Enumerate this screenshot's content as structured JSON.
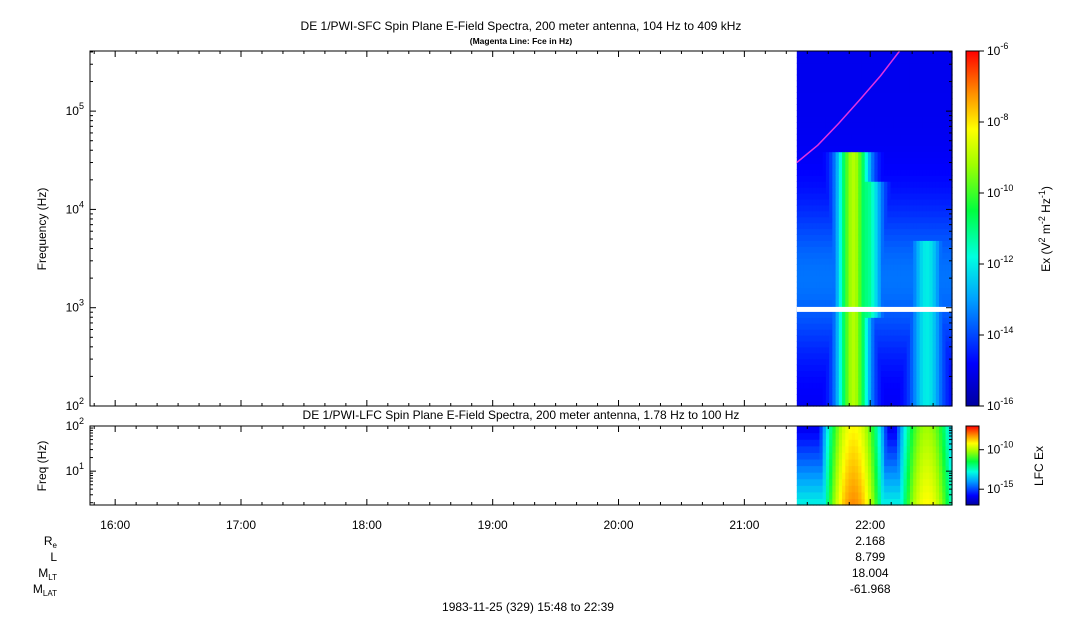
{
  "chart_data": [
    {
      "type": "heatmap",
      "title": "DE 1/PWI-SFC  Spin Plane E-Field Spectra, 200 meter antenna, 104 Hz to 409 kHz",
      "subtitle": "(Magenta Line: Fce in Hz)",
      "ylabel": "Frequency (Hz)",
      "y_scale": "log",
      "ylim": [
        100,
        409000
      ],
      "y_ticks": [
        {
          "value": 100,
          "base": "10",
          "exp": "2"
        },
        {
          "value": 1000,
          "base": "10",
          "exp": "3"
        },
        {
          "value": 10000,
          "base": "10",
          "exp": "4"
        },
        {
          "value": 100000,
          "base": "10",
          "exp": "5"
        }
      ],
      "colorbar": {
        "label": "Ex (V² m⁻² Hz⁻¹)",
        "label_parts": {
          "main": "Ex (V",
          "sup1": "2",
          "mid": " m",
          "sup2": "-2",
          "mid2": " Hz",
          "sup3": "-1",
          "end": ")"
        },
        "scale": "log",
        "range": [
          1e-16,
          1e-06
        ],
        "ticks": [
          {
            "value": 1e-06,
            "base": "10",
            "exp": "-6"
          },
          {
            "value": 1e-08,
            "base": "10",
            "exp": "-8"
          },
          {
            "value": 1e-10,
            "base": "10",
            "exp": "-10"
          },
          {
            "value": 1e-12,
            "base": "10",
            "exp": "-12"
          },
          {
            "value": 1e-14,
            "base": "10",
            "exp": "-14"
          },
          {
            "value": 1e-16,
            "base": "10",
            "exp": "-16"
          }
        ]
      },
      "data_time_range": [
        "21:25",
        "22:39"
      ],
      "gap_frequency_hz": 950,
      "fce_line": {
        "color": "#e033e0",
        "points": [
          {
            "t": "21:25",
            "f": 30000
          },
          {
            "t": "21:35",
            "f": 45000
          },
          {
            "t": "21:45",
            "f": 75000
          },
          {
            "t": "21:55",
            "f": 130000
          },
          {
            "t": "22:05",
            "f": 230000
          },
          {
            "t": "22:14",
            "f": 409000
          }
        ]
      },
      "emission_peaks": [
        {
          "t": "21:52",
          "f_low": 100,
          "f_high": 40000,
          "level": 1e-09
        },
        {
          "t": "21:58",
          "f_low": 800,
          "f_high": 20000,
          "level": 1e-11
        },
        {
          "t": "22:27",
          "f_low": 100,
          "f_high": 5000,
          "level": 1e-12
        }
      ]
    },
    {
      "type": "heatmap",
      "title": "DE 1/PWI-LFC  Spin Plane E-Field Spectra, 200 meter antenna, 1.78 Hz to 100 Hz",
      "ylabel": "Freq (Hz)",
      "y_scale": "log",
      "ylim": [
        1.78,
        100
      ],
      "y_ticks": [
        {
          "value": 10,
          "base": "10",
          "exp": "1"
        },
        {
          "value": 100,
          "base": "10",
          "exp": "2"
        }
      ],
      "colorbar": {
        "label": "LFC Ex",
        "scale": "log",
        "range": [
          1e-17,
          1e-07
        ],
        "ticks": [
          {
            "value": 1e-10,
            "base": "10",
            "exp": "-10"
          },
          {
            "value": 1e-15,
            "base": "10",
            "exp": "-15"
          }
        ]
      },
      "data_time_range": [
        "21:25",
        "22:39"
      ],
      "emission_peaks": [
        {
          "t": "21:52",
          "level": 1e-08
        },
        {
          "t": "22:27",
          "level": 1e-09
        }
      ]
    }
  ],
  "time_axis": {
    "start": "15:48",
    "end": "22:39",
    "tick_labels": [
      "16:00",
      "17:00",
      "18:00",
      "19:00",
      "20:00",
      "21:00",
      "22:00"
    ],
    "tick_times": [
      "16:00",
      "17:00",
      "18:00",
      "19:00",
      "20:00",
      "21:00",
      "22:00"
    ]
  },
  "ephemeris": {
    "rows": [
      {
        "label": "R",
        "sub": "e",
        "value": "2.168"
      },
      {
        "label": "L",
        "sub": "",
        "value": "8.799"
      },
      {
        "label": "M",
        "sub": "LT",
        "value": "18.004"
      },
      {
        "label": "M",
        "sub": "LAT",
        "value": "-61.968"
      }
    ],
    "at_time": "22:00"
  },
  "footer": "1983-11-25 (329) 15:48 to 22:39"
}
